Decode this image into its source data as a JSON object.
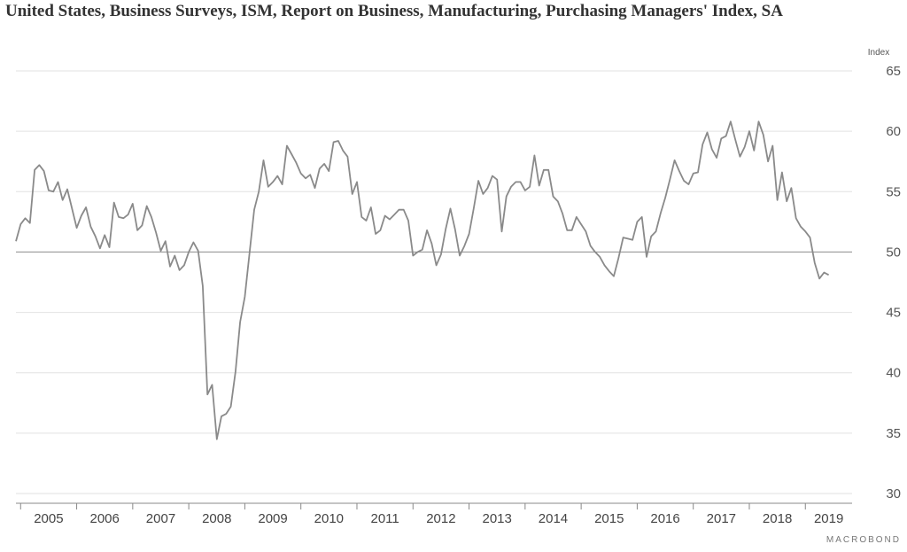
{
  "chart_data": {
    "type": "line",
    "title": "United States, Business Surveys, ISM, Report on Business, Manufacturing, Purchasing Managers' Index, SA",
    "ylabel": "Index",
    "ylim": [
      30,
      65
    ],
    "yticks": [
      30,
      35,
      40,
      45,
      50,
      55,
      60,
      65
    ],
    "x_tick_labels": [
      "2005",
      "2006",
      "2007",
      "2008",
      "2009",
      "2010",
      "2011",
      "2012",
      "2013",
      "2014",
      "2015",
      "2016",
      "2017",
      "2018",
      "2019"
    ],
    "xlim": [
      "2004-12",
      "2019-11"
    ],
    "reference_line": 50,
    "grid": true,
    "line_color": "#8a8a8a",
    "series": [
      {
        "x_start": "2004-12",
        "frequency": "monthly",
        "values": [
          50.9,
          52.3,
          52.8,
          52.4,
          56.8,
          57.2,
          56.7,
          55.1,
          55.0,
          55.8,
          54.3,
          55.2,
          53.6,
          52.0,
          53.0,
          53.7,
          52.1,
          51.3,
          50.3,
          51.4,
          50.4,
          54.1,
          52.9,
          52.8,
          53.1,
          54.0,
          51.8,
          52.2,
          53.8,
          52.9,
          51.6,
          50.1,
          50.9,
          48.8,
          49.7,
          48.5,
          48.9,
          50.0,
          50.8,
          50.1,
          47.2,
          38.2,
          39.0,
          34.5,
          36.4,
          36.6,
          37.2,
          40.1,
          44.2,
          46.3,
          49.9,
          53.5,
          55.0,
          57.6,
          55.4,
          55.8,
          56.3,
          55.6,
          58.8,
          58.1,
          57.4,
          56.5,
          56.1,
          56.4,
          55.3,
          56.9,
          57.3,
          56.7,
          59.1,
          59.2,
          58.4,
          57.9,
          54.8,
          55.8,
          52.9,
          52.6,
          53.7,
          51.5,
          51.8,
          53.0,
          52.7,
          53.1,
          53.5,
          53.5,
          52.6,
          49.7,
          50.0,
          50.2,
          51.8,
          50.7,
          48.9,
          49.8,
          51.9,
          53.6,
          51.9,
          49.7,
          50.5,
          51.5,
          53.6,
          55.9,
          54.8,
          55.3,
          56.3,
          56.0,
          51.7,
          54.6,
          55.4,
          55.8,
          55.8,
          55.1,
          55.4,
          58.0,
          55.5,
          56.8,
          56.8,
          54.6,
          54.2,
          53.2,
          51.8,
          51.8,
          52.9,
          52.3,
          51.7,
          50.5,
          50.0,
          49.6,
          48.9,
          48.4,
          48.0,
          49.5,
          51.2,
          51.1,
          51.0,
          52.5,
          52.9,
          49.6,
          51.3,
          51.7,
          53.2,
          54.5,
          56.0,
          57.6,
          56.7,
          55.9,
          55.6,
          56.5,
          56.6,
          58.9,
          59.9,
          58.5,
          57.8,
          59.4,
          59.6,
          60.8,
          59.3,
          57.9,
          58.7,
          60.0,
          58.4,
          60.8,
          59.7,
          57.5,
          58.8,
          54.3,
          56.6,
          54.2,
          55.3,
          52.8,
          52.1,
          51.7,
          51.2,
          49.1,
          47.8,
          48.3,
          48.1
        ]
      }
    ]
  },
  "footer": {
    "brand": "MACROBOND"
  }
}
